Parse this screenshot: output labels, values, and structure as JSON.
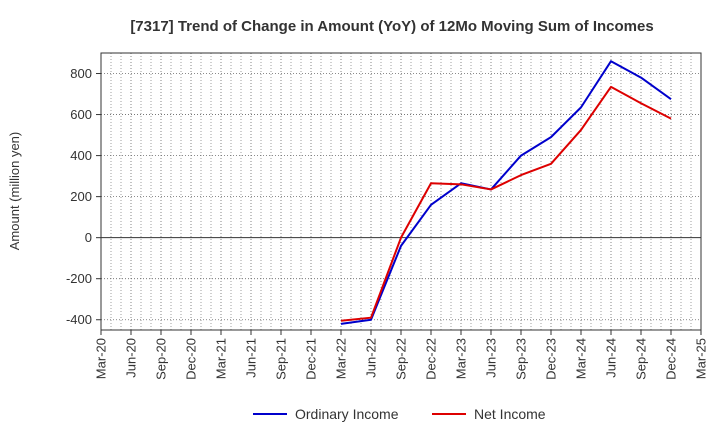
{
  "chart_data": {
    "type": "line",
    "title": "[7317]  Trend of Change in Amount (YoY) of 12Mo Moving Sum of Incomes",
    "xlabel": "",
    "ylabel": "Amount (million yen)",
    "categories": [
      "Mar-20",
      "Jun-20",
      "Sep-20",
      "Dec-20",
      "Mar-21",
      "Jun-21",
      "Sep-21",
      "Dec-21",
      "Mar-22",
      "Jun-22",
      "Sep-22",
      "Dec-22",
      "Mar-23",
      "Jun-23",
      "Sep-23",
      "Dec-23",
      "Mar-24",
      "Jun-24",
      "Sep-24",
      "Dec-24",
      "Mar-25"
    ],
    "ylim": [
      -450,
      900
    ],
    "yticks": [
      -400,
      -200,
      0,
      200,
      400,
      600,
      800
    ],
    "ytick_labels": [
      "-400",
      "-200",
      "0",
      "200",
      "400",
      "600",
      "800"
    ],
    "grid": true,
    "legend_position": "bottom-center",
    "series": [
      {
        "name": "Ordinary Income",
        "color": "#0000cc",
        "values": [
          null,
          null,
          null,
          null,
          null,
          null,
          null,
          null,
          -420,
          -400,
          -40,
          160,
          265,
          235,
          400,
          490,
          635,
          860,
          780,
          675,
          null
        ]
      },
      {
        "name": "Net Income",
        "color": "#dd0000",
        "values": [
          null,
          null,
          null,
          null,
          null,
          null,
          null,
          null,
          -405,
          -390,
          0,
          265,
          260,
          235,
          305,
          360,
          525,
          735,
          655,
          580,
          null
        ]
      }
    ]
  }
}
